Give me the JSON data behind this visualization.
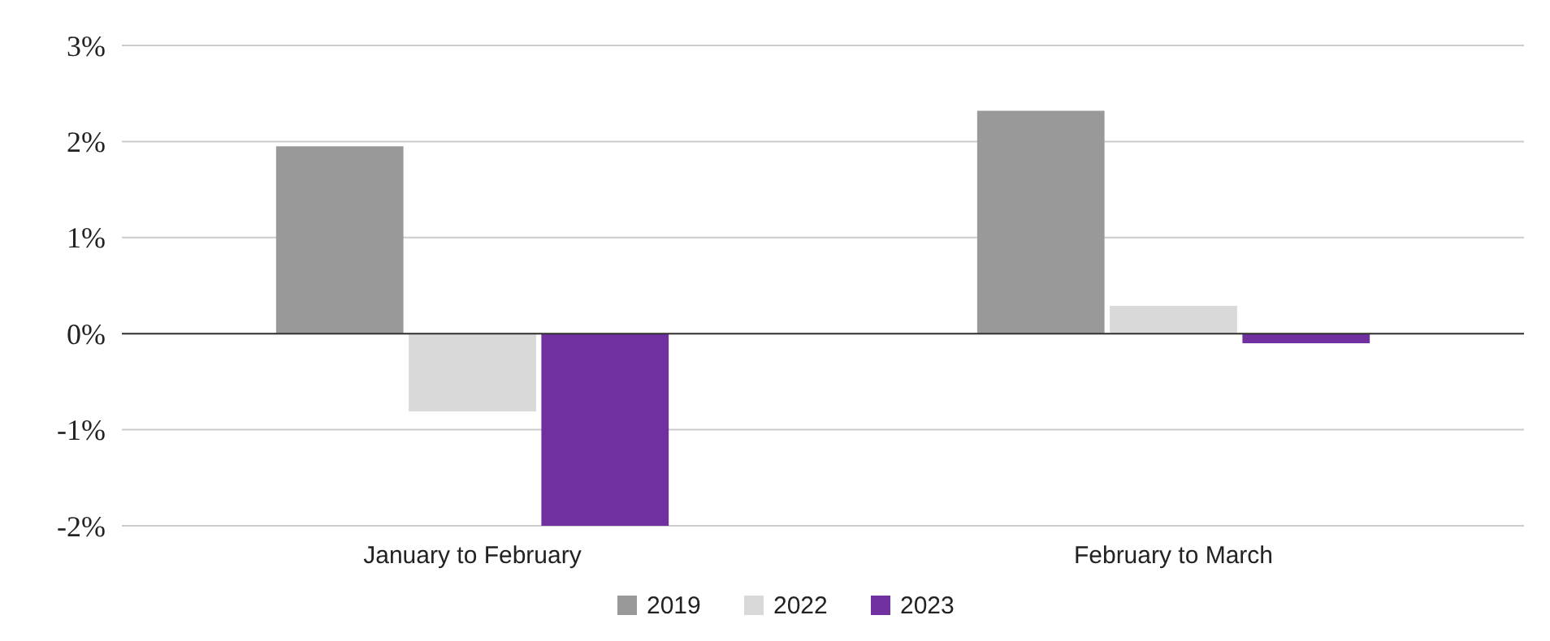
{
  "chart_data": {
    "type": "bar",
    "categories": [
      "January to February",
      "February to March"
    ],
    "series": [
      {
        "name": "2019",
        "color": "#999999",
        "values": [
          1.95,
          2.32
        ]
      },
      {
        "name": "2022",
        "color": "#d9d9d9",
        "values": [
          -0.81,
          0.29
        ]
      },
      {
        "name": "2023",
        "color": "#7030a0",
        "values": [
          -2.0,
          -0.1
        ]
      }
    ],
    "ylim": [
      -2,
      3
    ],
    "yticks": [
      {
        "value": -2,
        "label": "-2%"
      },
      {
        "value": -1,
        "label": "-1%"
      },
      {
        "value": 0,
        "label": "0%"
      },
      {
        "value": 1,
        "label": "1%"
      },
      {
        "value": 2,
        "label": "2%"
      },
      {
        "value": 3,
        "label": "3%"
      }
    ],
    "grid": "y",
    "legend": "bottom"
  }
}
